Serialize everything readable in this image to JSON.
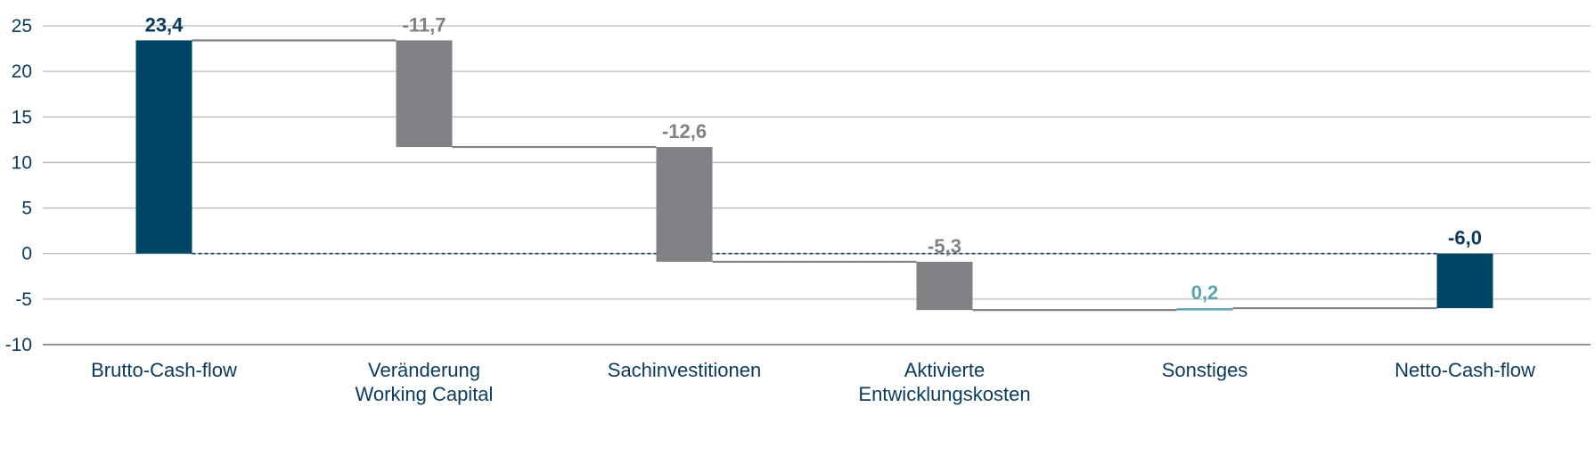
{
  "chart_data": {
    "type": "bar",
    "subtype": "waterfall",
    "categories": [
      "Brutto-Cash-flow",
      "Veränderung\nWorking Capital",
      "Sachinvestitionen",
      "Aktivierte\nEntwicklungskosten",
      "Sonstiges",
      "Netto-Cash-flow"
    ],
    "values": [
      23.4,
      -11.7,
      -12.6,
      -5.3,
      0.2,
      -6.0
    ],
    "bar_kind": [
      "total",
      "delta",
      "delta",
      "delta",
      "delta",
      "total"
    ],
    "value_labels": [
      "23,4",
      "-11,7",
      "-12,6",
      "-5,3",
      "0,2",
      "-6,0"
    ],
    "yticks": [
      25,
      20,
      15,
      10,
      5,
      0,
      -5,
      -10
    ],
    "ytick_labels": [
      "25",
      "20",
      "15",
      "10",
      "5",
      "0",
      "-5",
      "-10"
    ],
    "ylim": [
      -10,
      25
    ],
    "grid": true,
    "zero_line": "dashed",
    "colors": {
      "total": "#004563",
      "negative": "#818285",
      "positive": "#5aa7b1",
      "total_label": "#0b3a5c",
      "negative_label": "#818285",
      "positive_label": "#5aa7b1",
      "grid": "#b8bbbe",
      "connector": "#818285",
      "zero_line": "#0b3a5c"
    },
    "title": "",
    "xlabel": "",
    "ylabel": ""
  }
}
